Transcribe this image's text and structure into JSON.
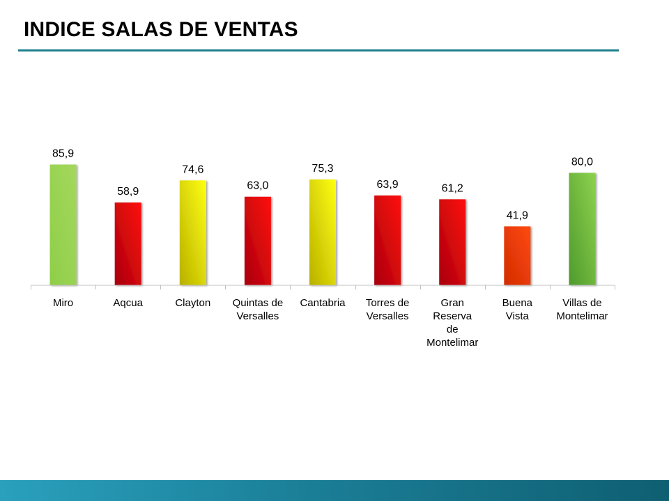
{
  "title": "INDICE SALAS DE VENTAS",
  "chart_data": {
    "type": "bar",
    "title": "",
    "xlabel": "",
    "ylabel": "",
    "ylim": [
      0,
      100
    ],
    "grid": false,
    "legend": "none",
    "categories": [
      [
        "Miro"
      ],
      [
        "Aqcua"
      ],
      [
        "Clayton"
      ],
      [
        "Quintas de",
        "Versalles"
      ],
      [
        "Cantabria"
      ],
      [
        "Torres de",
        "Versalles"
      ],
      [
        "Gran",
        "Reserva",
        "de",
        "Montelimar"
      ],
      [
        "Buena",
        "Vista"
      ],
      [
        "Villas de",
        "Montelimar"
      ]
    ],
    "values": [
      85.9,
      58.9,
      74.6,
      63.0,
      75.3,
      63.9,
      61.2,
      41.9,
      80.0
    ],
    "value_labels": [
      "85,9",
      "58,9",
      "74,6",
      "63,0",
      "75,3",
      "63,9",
      "61,2",
      "41,9",
      "80,0"
    ],
    "bar_colors": [
      "green",
      "red",
      "yellow",
      "red",
      "yellow",
      "red",
      "red",
      "orange",
      "dark-green"
    ],
    "palette": {
      "green": [
        "#8fce49",
        "#a4d85c"
      ],
      "dark-green": [
        "#4e9a2c",
        "#8ed24e"
      ],
      "red": [
        "#a80010",
        "#ff1010"
      ],
      "yellow": [
        "#b8b000",
        "#ffff10"
      ],
      "orange": [
        "#d12c00",
        "#ff4a10"
      ]
    },
    "axis_color": "#c0c0c0"
  }
}
